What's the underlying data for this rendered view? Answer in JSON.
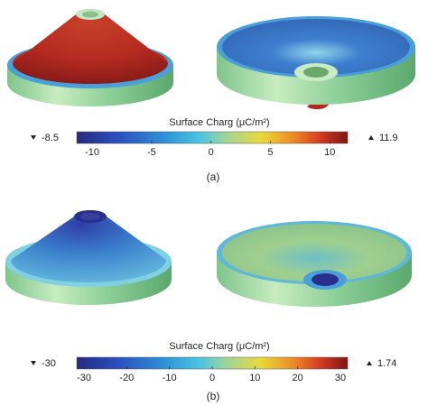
{
  "panels": [
    {
      "caption": "(a)",
      "colorbar": {
        "title": "Surface Charg (μC/m²)",
        "min": -8.5,
        "max": 11.9,
        "clim": [
          -11.3,
          11.5
        ],
        "ticks": [
          -10,
          -5,
          0,
          5,
          10
        ]
      }
    },
    {
      "caption": "(b)",
      "colorbar": {
        "title": "Surface Charg (μC/m²)",
        "min": -30,
        "max": 1.74,
        "clim": [
          -31.7,
          31.7
        ],
        "ticks": [
          -30,
          -20,
          -10,
          0,
          10,
          20,
          30
        ]
      }
    }
  ]
}
